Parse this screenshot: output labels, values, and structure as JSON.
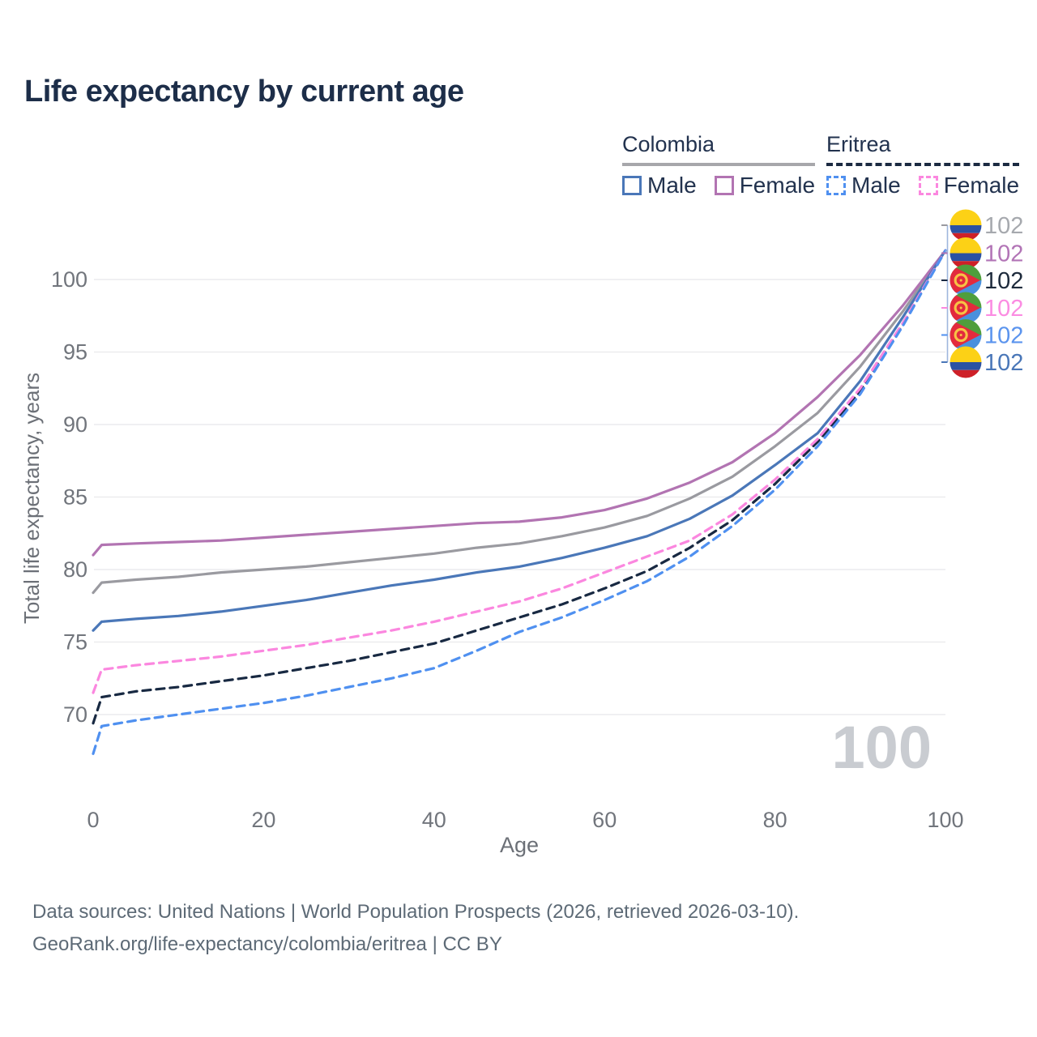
{
  "title": "Life expectancy by current age",
  "legend": {
    "groups": [
      {
        "country": "Colombia",
        "line_style": "solid",
        "line_color": "#9a9aa0",
        "items": [
          {
            "label": "Male",
            "color": "#4a77b8",
            "dashed": false
          },
          {
            "label": "Female",
            "color": "#b274b2",
            "dashed": false
          }
        ]
      },
      {
        "country": "Eritrea",
        "line_style": "dashed",
        "line_color": "#1b2a41",
        "items": [
          {
            "label": "Male",
            "color": "#4f90f0",
            "dashed": true
          },
          {
            "label": "Female",
            "color": "#fb87df",
            "dashed": true
          }
        ]
      }
    ]
  },
  "footer": {
    "line1": "Data sources: United Nations | World Population Prospects (2026, retrieved 2026-03-10).",
    "line2": "GeoRank.org/life-expectancy/colombia/eritrea | CC BY"
  },
  "chart_data": {
    "type": "line",
    "title": "Life expectancy by current age",
    "xlabel": "Age",
    "ylabel": "Total life expectancy, years",
    "x_ticks": [
      0,
      20,
      40,
      60,
      80,
      100
    ],
    "y_ticks": [
      70,
      75,
      80,
      85,
      90,
      95,
      100
    ],
    "xlim": [
      0,
      100
    ],
    "ylim": [
      66.5,
      102.5
    ],
    "grid": "horizontal",
    "age_counter": "100",
    "x": [
      0,
      1,
      5,
      10,
      15,
      20,
      25,
      30,
      35,
      40,
      45,
      50,
      55,
      60,
      65,
      70,
      75,
      80,
      85,
      90,
      95,
      100
    ],
    "series": [
      {
        "id": "colombia-both",
        "name": "Colombia",
        "sex": "both",
        "color": "#9a9aa0",
        "dashed": false,
        "values": [
          78.4,
          79.1,
          79.3,
          79.5,
          79.8,
          80.0,
          80.2,
          80.5,
          80.8,
          81.1,
          81.5,
          81.8,
          82.3,
          82.9,
          83.7,
          84.9,
          86.4,
          88.5,
          90.8,
          94.0,
          97.8,
          102.0
        ]
      },
      {
        "id": "colombia-female",
        "name": "Colombia Female",
        "sex": "female",
        "color": "#b274b2",
        "dashed": false,
        "values": [
          81.0,
          81.7,
          81.8,
          81.9,
          82.0,
          82.2,
          82.4,
          82.6,
          82.8,
          83.0,
          83.2,
          83.3,
          83.6,
          84.1,
          84.9,
          86.0,
          87.4,
          89.4,
          91.9,
          94.8,
          98.2,
          102.0
        ]
      },
      {
        "id": "colombia-male",
        "name": "Colombia Male",
        "sex": "male",
        "color": "#4a77b8",
        "dashed": false,
        "values": [
          75.8,
          76.4,
          76.6,
          76.8,
          77.1,
          77.5,
          77.9,
          78.4,
          78.9,
          79.3,
          79.8,
          80.2,
          80.8,
          81.5,
          82.3,
          83.5,
          85.1,
          87.2,
          89.4,
          93.0,
          97.4,
          102.0
        ]
      },
      {
        "id": "eritrea-both",
        "name": "Eritrea",
        "sex": "both",
        "color": "#182942",
        "dashed": true,
        "values": [
          69.4,
          71.2,
          71.6,
          71.9,
          72.3,
          72.7,
          73.2,
          73.7,
          74.3,
          74.9,
          75.8,
          76.7,
          77.6,
          78.7,
          79.9,
          81.5,
          83.4,
          85.9,
          88.8,
          92.3,
          96.9,
          102.0
        ]
      },
      {
        "id": "eritrea-female",
        "name": "Eritrea Female",
        "sex": "female",
        "color": "#fb87df",
        "dashed": true,
        "values": [
          71.5,
          73.1,
          73.4,
          73.7,
          74.0,
          74.4,
          74.8,
          75.3,
          75.8,
          76.4,
          77.1,
          77.8,
          78.7,
          79.8,
          80.9,
          82.0,
          83.8,
          86.2,
          89.0,
          92.5,
          97.0,
          102.0
        ]
      },
      {
        "id": "eritrea-male",
        "name": "Eritrea Male",
        "sex": "male",
        "color": "#4f90f0",
        "dashed": true,
        "values": [
          67.3,
          69.2,
          69.6,
          70.0,
          70.4,
          70.8,
          71.3,
          71.9,
          72.5,
          73.2,
          74.4,
          75.7,
          76.7,
          77.9,
          79.2,
          80.9,
          83.0,
          85.5,
          88.5,
          92.1,
          96.8,
          102.0
        ]
      }
    ],
    "end_labels": [
      {
        "flag": "colombia",
        "series": "colombia-both",
        "value": "102",
        "color": "#a6a9ae"
      },
      {
        "flag": "colombia",
        "series": "colombia-female",
        "value": "102",
        "color": "#b274b6"
      },
      {
        "flag": "eritrea",
        "series": "eritrea-both",
        "value": "102",
        "color": "#1e2b3c"
      },
      {
        "flag": "eritrea",
        "series": "eritrea-female",
        "value": "102",
        "color": "#fb8ce2"
      },
      {
        "flag": "eritrea",
        "series": "eritrea-male",
        "value": "102",
        "color": "#5b94ee"
      },
      {
        "flag": "colombia",
        "series": "colombia-male",
        "value": "102",
        "color": "#4a77b8"
      }
    ],
    "flag_colors": {
      "colombia": {
        "yellow": "#FCD116",
        "blue": "#2b52a3",
        "red": "#CE2028"
      },
      "eritrea": {
        "green": "#4f9e3c",
        "blue": "#4a90dd",
        "red": "#e32a3d",
        "gold": "#f7c345"
      }
    }
  }
}
